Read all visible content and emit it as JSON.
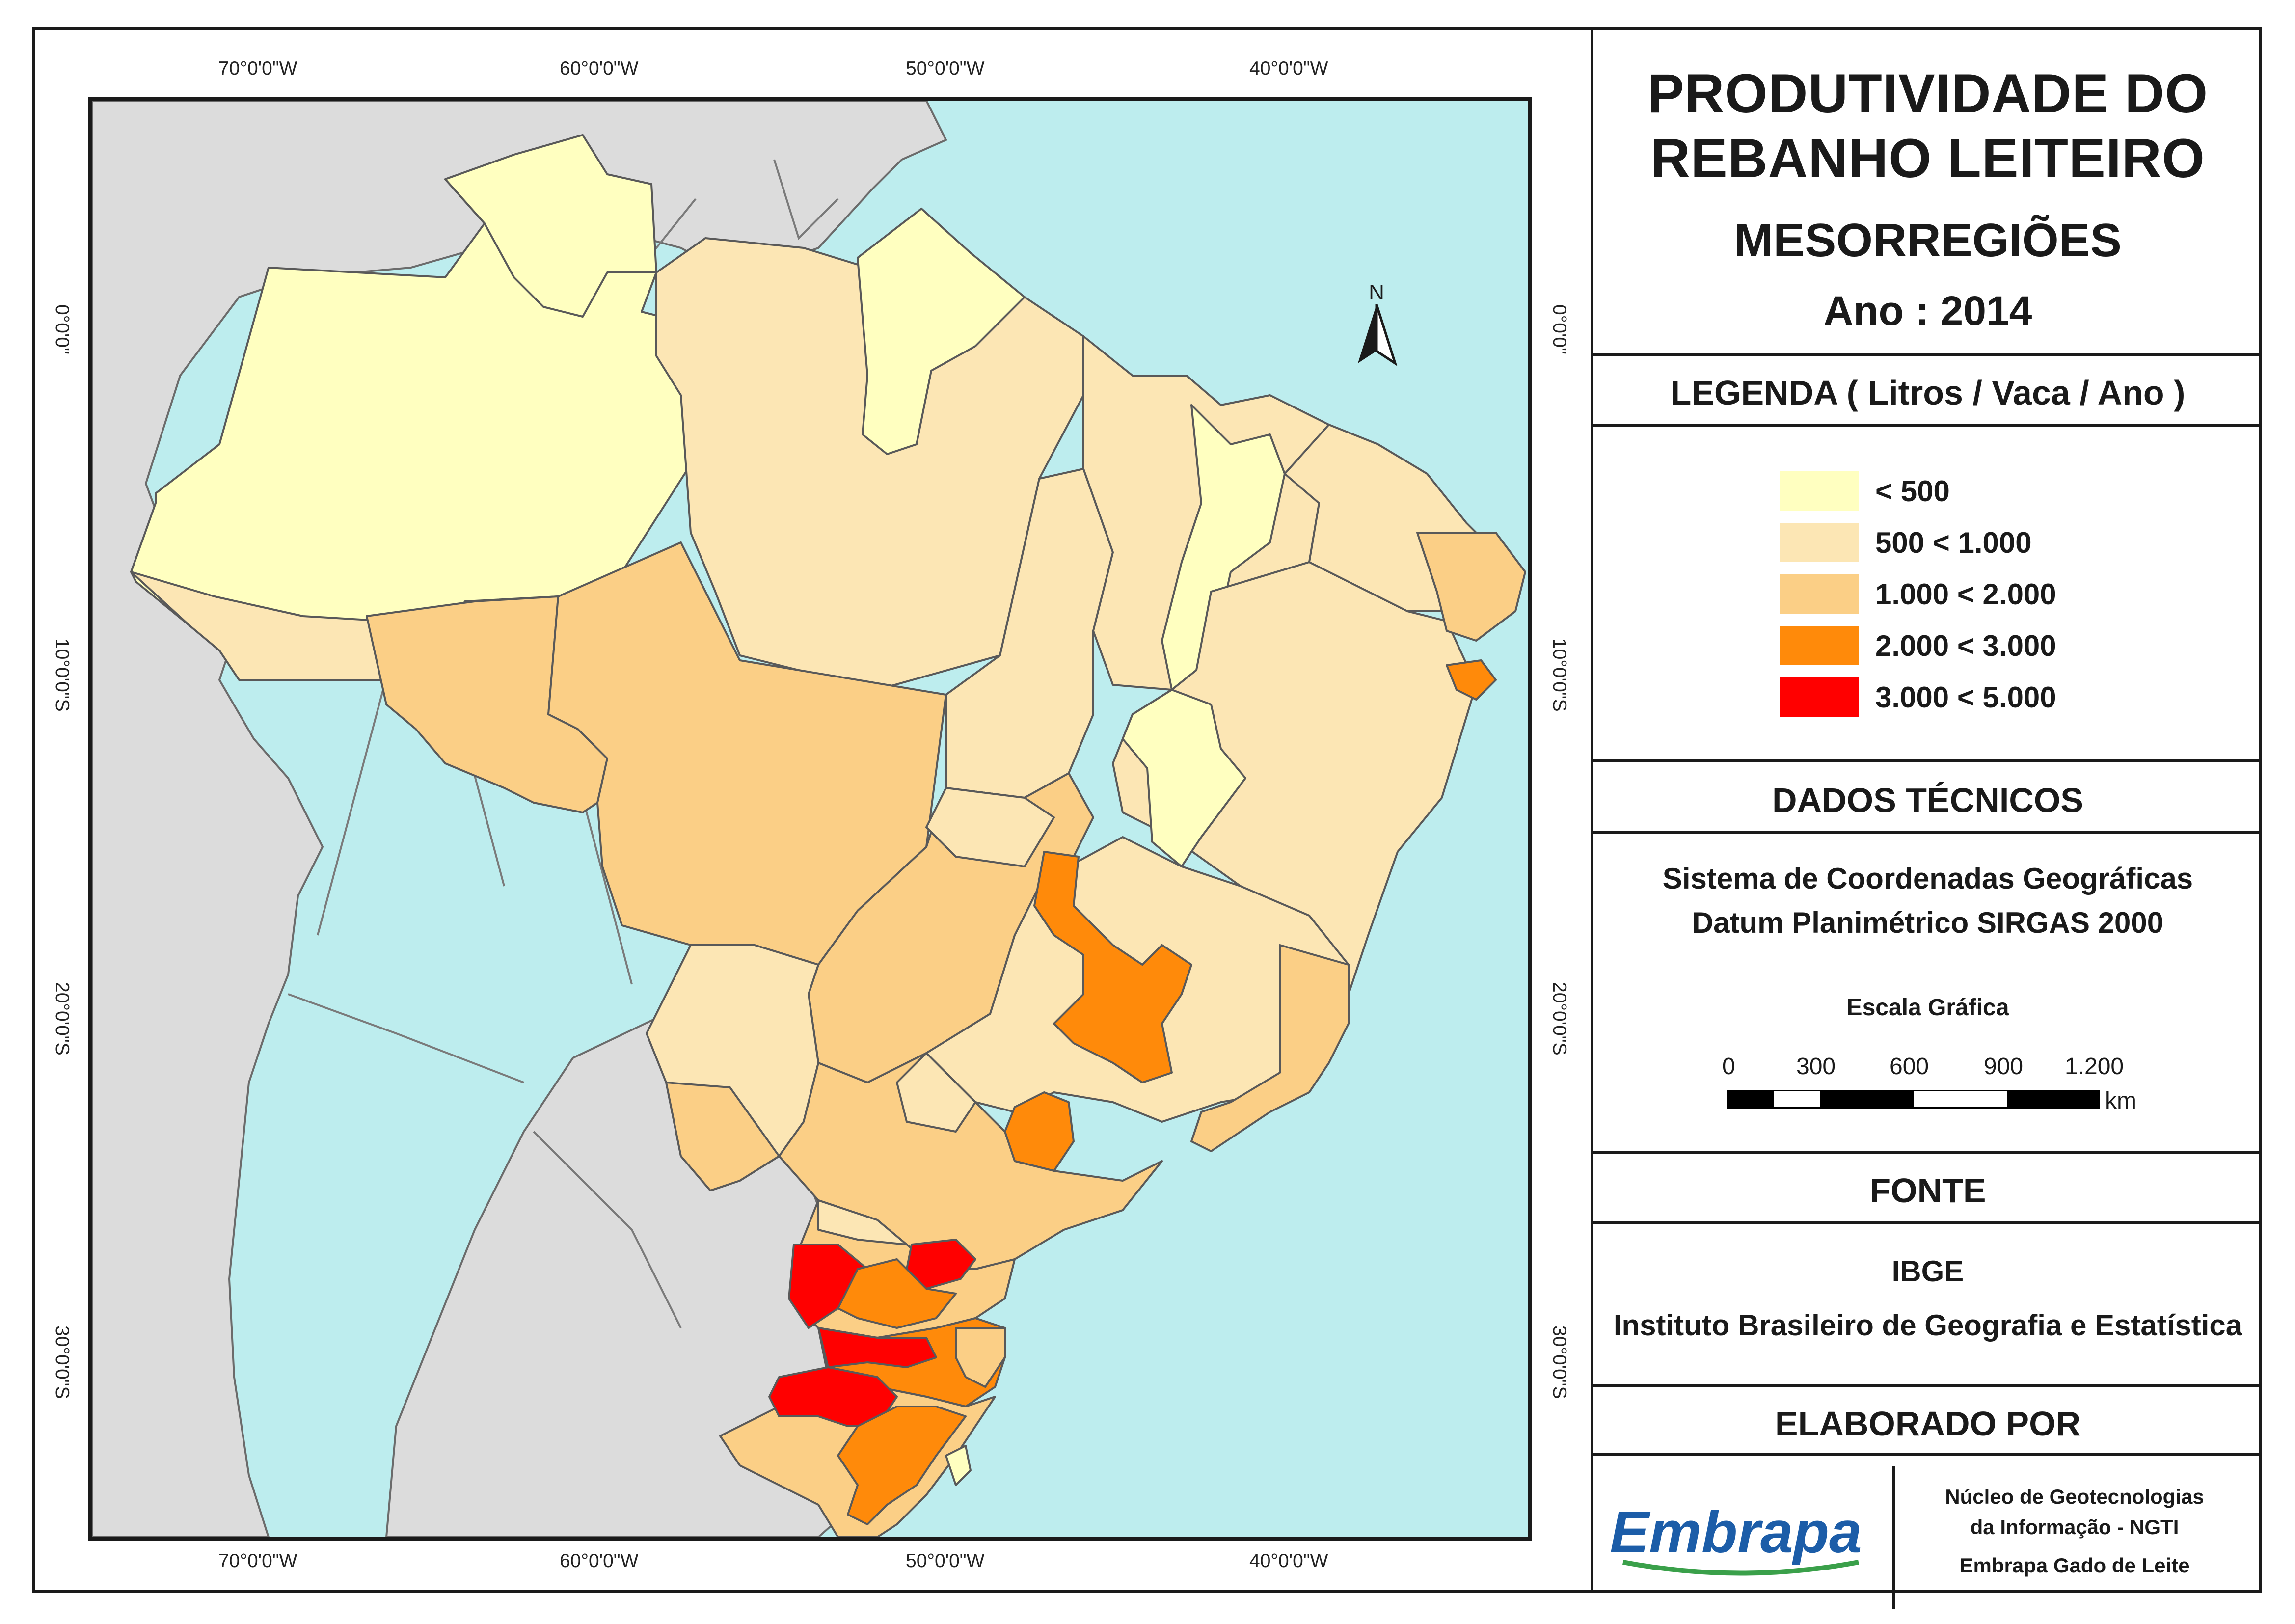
{
  "title": {
    "line1": "PRODUTIVIDADE DO",
    "line2": "REBANHO LEITEIRO",
    "subtitle": "MESORREGIÕES",
    "year": "Ano : 2014"
  },
  "legend": {
    "heading": "LEGENDA ( Litros / Vaca / Ano )",
    "classes": [
      {
        "label": "< 500",
        "color": "#FFFFC0"
      },
      {
        "label": "500 < 1.000",
        "color": "#FCE6B4"
      },
      {
        "label": "1.000 < 2.000",
        "color": "#FBCF86"
      },
      {
        "label": "2.000 < 3.000",
        "color": "#FF8A0A"
      },
      {
        "label": "3.000 < 5.000",
        "color": "#FF0000"
      }
    ]
  },
  "technical": {
    "heading": "DADOS TÉCNICOS",
    "line1": "Sistema de Coordenadas Geográficas",
    "line2": "Datum Planimétrico SIRGAS 2000",
    "scale_title": "Escala Gráfica",
    "scale_ticks": [
      "0",
      "300",
      "600",
      "900",
      "1.200"
    ],
    "scale_unit": "km"
  },
  "source": {
    "heading": "FONTE",
    "line1": "IBGE",
    "line2": "Instituto Brasileiro de Geografia e Estatística"
  },
  "author": {
    "heading": "ELABORADO POR",
    "logo_text": "Embrapa",
    "line1": "Núcleo de Geotecnologias",
    "line2": "da Informação - NGTI",
    "line3": "Embrapa Gado de Leite"
  },
  "map": {
    "north_label": "N",
    "longitudes": [
      "70°0'0\"W",
      "60°0'0\"W",
      "50°0'0\"W",
      "40°0'0\"W"
    ],
    "latitudes": [
      "0°0'0\"",
      "10°0'0\"S",
      "20°0'0\"S",
      "30°0'0\"S"
    ],
    "colors": {
      "ocean": "#BDEDEE",
      "neighbors": "#DCDCDC",
      "borders": "#595959",
      "state_borders": "#404040"
    }
  }
}
